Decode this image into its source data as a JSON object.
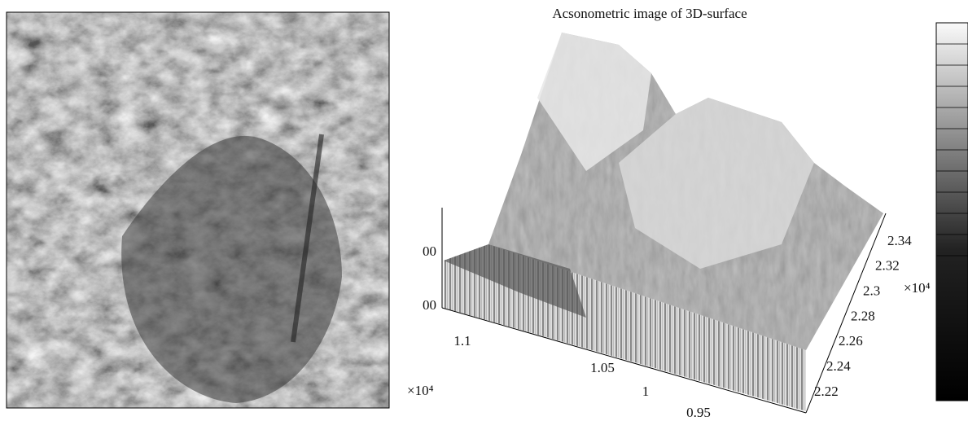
{
  "surface_plot": {
    "title": "Acsonometric image of 3D-surface",
    "x_axis": {
      "ticks": [
        1.1,
        1.05,
        1,
        0.95
      ],
      "multiplier": "×10⁴"
    },
    "y_axis": {
      "ticks": [
        2.22,
        2.24,
        2.26,
        2.28,
        2.3,
        2.32,
        2.34
      ],
      "multiplier": "×10⁴"
    },
    "z_axis": {
      "ticks": [
        "00",
        "00"
      ]
    }
  }
}
